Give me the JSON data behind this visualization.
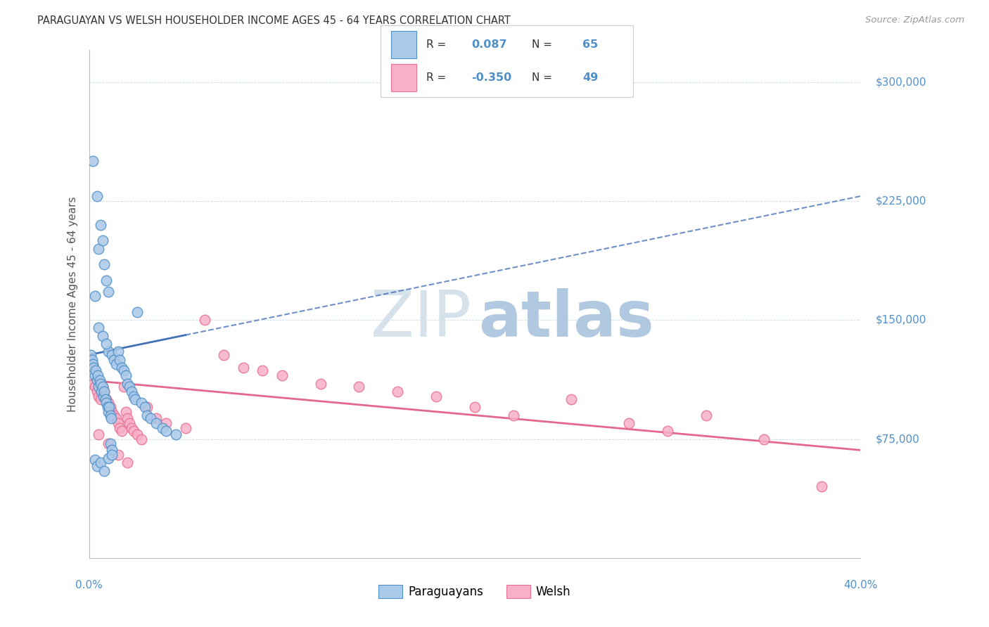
{
  "title": "PARAGUAYAN VS WELSH HOUSEHOLDER INCOME AGES 45 - 64 YEARS CORRELATION CHART",
  "source": "Source: ZipAtlas.com",
  "ylabel": "Householder Income Ages 45 - 64 years",
  "xmin": 0.0,
  "xmax": 40.0,
  "ymin": 0,
  "ymax": 320000,
  "yticks": [
    75000,
    150000,
    225000,
    300000
  ],
  "ytick_labels": [
    "$75,000",
    "$150,000",
    "$225,000",
    "$300,000"
  ],
  "legend_label_paraguayan": "Paraguayans",
  "legend_label_welsh": "Welsh",
  "par_face_color": "#aac8e8",
  "par_edge_color": "#5090c8",
  "welsh_face_color": "#f8b0c8",
  "welsh_edge_color": "#e87090",
  "par_line_color": "#3060b0",
  "welsh_line_color": "#e05880",
  "grid_color": "#c0d8ec",
  "watermark_zip_color": "#d0dce8",
  "watermark_atlas_color": "#b8cce0",
  "par_line_x0": 0.0,
  "par_line_y0": 128000,
  "par_line_x1": 40.0,
  "par_line_y1": 228000,
  "welsh_line_x0": 0.0,
  "welsh_line_y0": 112000,
  "welsh_line_x1": 40.0,
  "welsh_line_y1": 68000,
  "par_x": [
    0.1,
    0.15,
    0.2,
    0.25,
    0.3,
    0.35,
    0.4,
    0.45,
    0.5,
    0.55,
    0.6,
    0.65,
    0.7,
    0.75,
    0.8,
    0.85,
    0.9,
    0.95,
    1.0,
    1.0,
    1.05,
    1.1,
    1.15,
    1.2,
    1.3,
    1.4,
    1.5,
    1.6,
    1.7,
    1.8,
    1.9,
    2.0,
    2.1,
    2.2,
    2.3,
    2.4,
    2.5,
    2.7,
    2.9,
    3.0,
    3.2,
    3.5,
    3.8,
    4.0,
    4.5,
    0.2,
    0.3,
    0.4,
    0.5,
    0.6,
    0.7,
    0.8,
    0.9,
    1.0,
    1.1,
    1.2,
    0.3,
    0.4,
    0.6,
    0.8,
    1.0,
    1.2,
    0.5,
    0.7,
    0.9
  ],
  "par_y": [
    128000,
    125000,
    122000,
    120000,
    115000,
    118000,
    112000,
    115000,
    108000,
    112000,
    110000,
    105000,
    108000,
    102000,
    105000,
    100000,
    98000,
    95000,
    92000,
    130000,
    95000,
    90000,
    88000,
    128000,
    125000,
    122000,
    130000,
    125000,
    120000,
    118000,
    115000,
    110000,
    108000,
    105000,
    102000,
    100000,
    155000,
    98000,
    95000,
    90000,
    88000,
    85000,
    82000,
    80000,
    78000,
    250000,
    165000,
    228000,
    195000,
    210000,
    200000,
    185000,
    175000,
    168000,
    72000,
    68000,
    62000,
    58000,
    60000,
    55000,
    63000,
    65000,
    145000,
    140000,
    135000
  ],
  "welsh_x": [
    0.2,
    0.3,
    0.4,
    0.5,
    0.6,
    0.7,
    0.8,
    0.9,
    1.0,
    1.1,
    1.2,
    1.3,
    1.4,
    1.5,
    1.6,
    1.7,
    1.8,
    1.9,
    2.0,
    2.1,
    2.2,
    2.3,
    2.5,
    2.7,
    3.0,
    3.5,
    4.0,
    5.0,
    6.0,
    7.0,
    8.0,
    9.0,
    10.0,
    12.0,
    14.0,
    16.0,
    18.0,
    20.0,
    22.0,
    25.0,
    28.0,
    30.0,
    32.0,
    35.0,
    38.0,
    0.5,
    1.0,
    1.5,
    2.0
  ],
  "welsh_y": [
    110000,
    108000,
    105000,
    102000,
    100000,
    108000,
    105000,
    100000,
    98000,
    95000,
    92000,
    90000,
    88000,
    85000,
    82000,
    80000,
    108000,
    92000,
    88000,
    85000,
    82000,
    80000,
    78000,
    75000,
    95000,
    88000,
    85000,
    82000,
    150000,
    128000,
    120000,
    118000,
    115000,
    110000,
    108000,
    105000,
    102000,
    95000,
    90000,
    100000,
    85000,
    80000,
    90000,
    75000,
    45000,
    78000,
    72000,
    65000,
    60000
  ]
}
